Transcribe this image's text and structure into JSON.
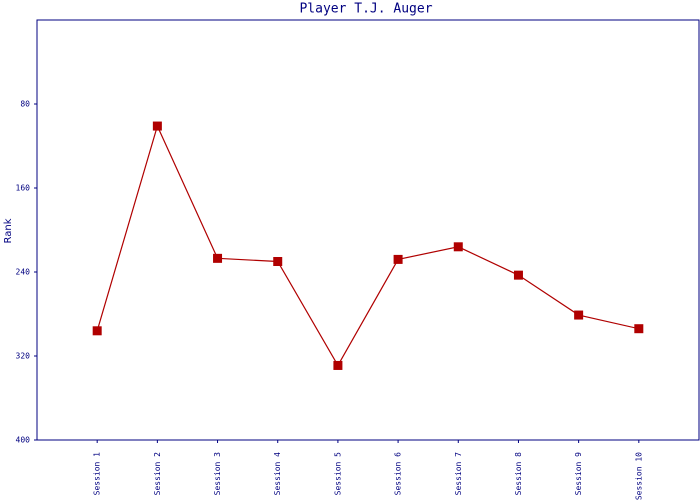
{
  "chart_data": {
    "type": "line",
    "title": "Player T.J. Auger",
    "y_label": "Rank",
    "categories": [
      "Session 1",
      "Session 2",
      "Session 3",
      "Session 4",
      "Session 5",
      "Session 6",
      "Session 7",
      "Session 8",
      "Session 9",
      "Session 10"
    ],
    "series": [
      {
        "color": "#b00000",
        "values": [
          296,
          101,
          227,
          230,
          329,
          228,
          216,
          243,
          281,
          294
        ]
      }
    ],
    "ylim": [
      0,
      400
    ],
    "y_inverted": true,
    "yticks": [
      80,
      160,
      240,
      320,
      400
    ],
    "grid": false
  }
}
